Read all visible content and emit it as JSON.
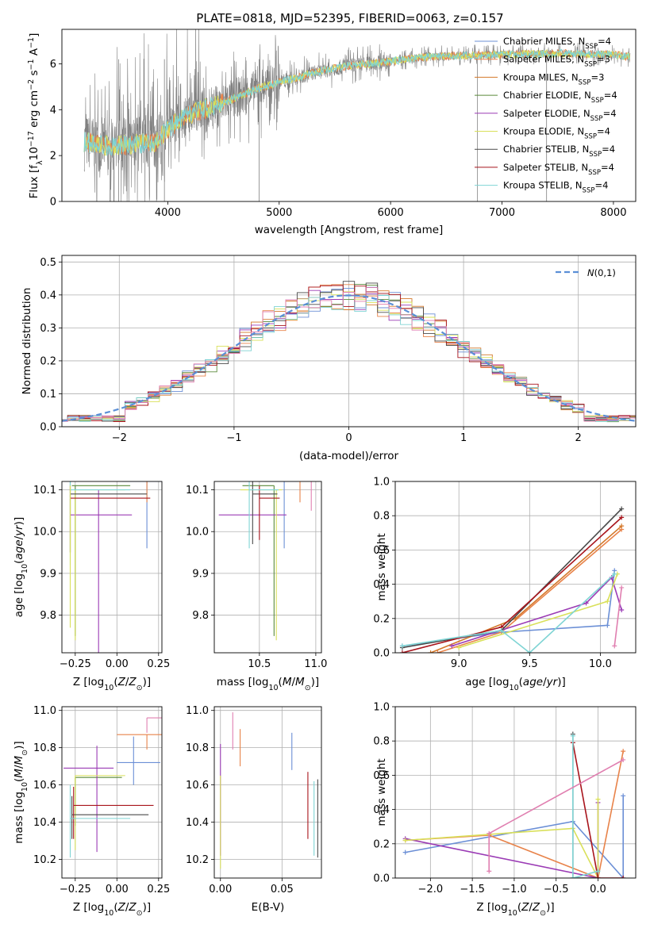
{
  "title": "PLATE=0818, MJD=52395, FIBERID=0063, z=0.157",
  "colors": {
    "Chabrier MILES": "#6b8fd6",
    "Salpeter MILES": "#e8834a",
    "Kroupa MILES": "#d4782a",
    "Chabrier ELODIE": "#5a8a3a",
    "Salpeter ELODIE": "#9b3bb5",
    "Kroupa ELODIE": "#d9e05a",
    "Chabrier STELIB": "#4a4a4a",
    "Salpeter STELIB": "#a8141c",
    "Kroupa STELIB": "#7fd4d4",
    "extra": "#e07fb0",
    "data": "#808080",
    "gauss": "#5b8fd6"
  },
  "chart_data": [
    {
      "id": "spectrum",
      "type": "line",
      "xlabel": "wavelength [Angstrom, rest frame]",
      "ylabel": "Flux [f_λ 10^-17 erg cm^-2 s^-1 A^-1]",
      "xlim": [
        3050,
        8200
      ],
      "ylim": [
        0,
        7.5
      ],
      "xticks": [
        "4000",
        "5000",
        "6000",
        "7000",
        "8000"
      ],
      "yticks": [
        "0",
        "2",
        "4",
        "6"
      ],
      "legend_position": "right",
      "legend": [
        {
          "text": "Chabrier MILES, N",
          "sub": "SSP",
          "tail": "=4"
        },
        {
          "text": "Salpeter MILES, N",
          "sub": "SSP",
          "tail": "=3"
        },
        {
          "text": "Kroupa MILES, N",
          "sub": "SSP",
          "tail": "=3"
        },
        {
          "text": "Chabrier ELODIE, N",
          "sub": "SSP",
          "tail": "=4"
        },
        {
          "text": "Salpeter ELODIE, N",
          "sub": "SSP",
          "tail": "=4"
        },
        {
          "text": "Kroupa ELODIE, N",
          "sub": "SSP",
          "tail": "=4"
        },
        {
          "text": "Chabrier STELIB, N",
          "sub": "SSP",
          "tail": "=4"
        },
        {
          "text": "Salpeter STELIB, N",
          "sub": "SSP",
          "tail": "=4"
        },
        {
          "text": "Kroupa STELIB, N",
          "sub": "SSP",
          "tail": "=4"
        }
      ],
      "model_continuum": [
        [
          3250,
          2.6
        ],
        [
          3500,
          2.4
        ],
        [
          3700,
          2.5
        ],
        [
          3900,
          2.6
        ],
        [
          4000,
          3.2
        ],
        [
          4200,
          3.8
        ],
        [
          4500,
          4.3
        ],
        [
          4800,
          4.9
        ],
        [
          5000,
          5.2
        ],
        [
          5300,
          5.6
        ],
        [
          5600,
          5.9
        ],
        [
          6000,
          6.1
        ],
        [
          6300,
          6.3
        ],
        [
          6600,
          6.35
        ],
        [
          7000,
          6.4
        ],
        [
          7500,
          6.45
        ],
        [
          8000,
          6.4
        ],
        [
          8150,
          6.3
        ]
      ]
    },
    {
      "id": "residuals",
      "type": "histogram",
      "xlabel": "(data-model)/error",
      "ylabel": "Normed distribution",
      "xlim": [
        -2.5,
        2.5
      ],
      "ylim": [
        0,
        0.52
      ],
      "xticks": [
        "−2",
        "−1",
        "0",
        "1",
        "2"
      ],
      "yticks": [
        "0.0",
        "0.1",
        "0.2",
        "0.3",
        "0.4",
        "0.5"
      ],
      "grid": true,
      "legend": "N(0,1)",
      "legend_position": "top-right"
    },
    {
      "id": "age_vs_Z",
      "type": "errorbar",
      "xlabel": "Z [log10(Z/Z⊙)]",
      "ylabel": "age [log10(age/yr)]",
      "xlim": [
        -0.33,
        0.27
      ],
      "ylim": [
        9.71,
        10.12
      ],
      "xticks": [
        "−0.25",
        "0.00",
        "0.25"
      ],
      "yticks": [
        "9.8",
        "9.9",
        "10.0",
        "10.1"
      ],
      "grid": true,
      "series": [
        {
          "name": "Chabrier MILES",
          "x": 0.18,
          "xerr": [
            0.15,
            0.22
          ],
          "y": 10.12,
          "yerr": [
            0.16,
            0.0
          ]
        },
        {
          "name": "Salpeter MILES",
          "x": 0.18,
          "xerr": [
            0.18,
            0.12
          ],
          "y": 10.13,
          "yerr": [
            0.06,
            0.0
          ]
        },
        {
          "name": "Chabrier ELODIE",
          "x": -0.25,
          "xerr": [
            0.02,
            0.33
          ],
          "y": 10.11,
          "yerr": [
            0.36,
            0.0
          ]
        },
        {
          "name": "Salpeter ELODIE",
          "x": -0.11,
          "xerr": [
            0.17,
            0.2
          ],
          "y": 10.04,
          "yerr": [
            0.33,
            0.06
          ]
        },
        {
          "name": "Kroupa ELODIE",
          "x": -0.25,
          "xerr": [
            0.0,
            0.3
          ],
          "y": 10.1,
          "yerr": [
            0.36,
            0.0
          ]
        },
        {
          "name": "Chabrier STELIB",
          "x": -0.28,
          "xerr": [
            0.0,
            0.46
          ],
          "y": 10.09,
          "yerr": [
            0.14,
            0.03
          ]
        },
        {
          "name": "Salpeter STELIB",
          "x": -0.28,
          "xerr": [
            0.0,
            0.48
          ],
          "y": 10.08,
          "yerr": [
            0.13,
            0.03
          ]
        },
        {
          "name": "Kroupa STELIB",
          "x": -0.28,
          "xerr": [
            0.0,
            0.36
          ],
          "y": 10.1,
          "yerr": [
            0.18,
            0.05
          ]
        }
      ]
    },
    {
      "id": "age_vs_mass",
      "type": "errorbar",
      "xlabel": "mass [log10(M/M⊙)]",
      "ylabel": "",
      "xlim": [
        10.1,
        11.05
      ],
      "ylim": [
        9.71,
        10.12
      ],
      "xticks": [
        "10.5",
        "11.0"
      ],
      "yticks": [
        "9.8",
        "9.9",
        "10.0",
        "10.1"
      ],
      "grid": true
    },
    {
      "id": "weight_vs_age",
      "type": "line",
      "xlabel": "age [log10(age/yr)]",
      "ylabel": "mass weight",
      "xlim": [
        8.55,
        10.25
      ],
      "ylim": [
        0,
        1.0
      ],
      "xticks": [
        "9.0",
        "9.5",
        "10.0"
      ],
      "yticks": [
        "0.0",
        "0.2",
        "0.4",
        "0.6",
        "0.8",
        "1.0"
      ],
      "grid": true
    },
    {
      "id": "mass_vs_Z",
      "type": "errorbar",
      "xlabel": "Z [log10(Z/Z⊙)]",
      "ylabel": "mass [log10(M/M⊙)]",
      "xlim": [
        -0.33,
        0.27
      ],
      "ylim": [
        10.1,
        11.02
      ],
      "xticks": [
        "−0.25",
        "0.00",
        "0.25"
      ],
      "yticks": [
        "10.2",
        "10.4",
        "10.6",
        "10.8",
        "11.0"
      ],
      "grid": true
    },
    {
      "id": "mass_vs_ebv",
      "type": "errorbar",
      "xlabel": "E(B-V)",
      "ylabel": "",
      "xlim": [
        -0.005,
        0.082
      ],
      "ylim": [
        10.1,
        11.02
      ],
      "xticks": [
        "0.00",
        "0.05"
      ],
      "yticks": [
        "10.2",
        "10.4",
        "10.6",
        "10.8",
        "11.0"
      ],
      "grid": true
    },
    {
      "id": "weight_vs_Z",
      "type": "line",
      "xlabel": "Z [log10(Z/Z⊙)]",
      "ylabel": "mass weight",
      "xlim": [
        -2.42,
        0.45
      ],
      "ylim": [
        0,
        1.0
      ],
      "xticks": [
        "−2.0",
        "−1.5",
        "−1.0",
        "−0.5",
        "0.0"
      ],
      "yticks": [
        "0.0",
        "0.2",
        "0.4",
        "0.6",
        "0.8",
        "1.0"
      ],
      "grid": true
    }
  ]
}
